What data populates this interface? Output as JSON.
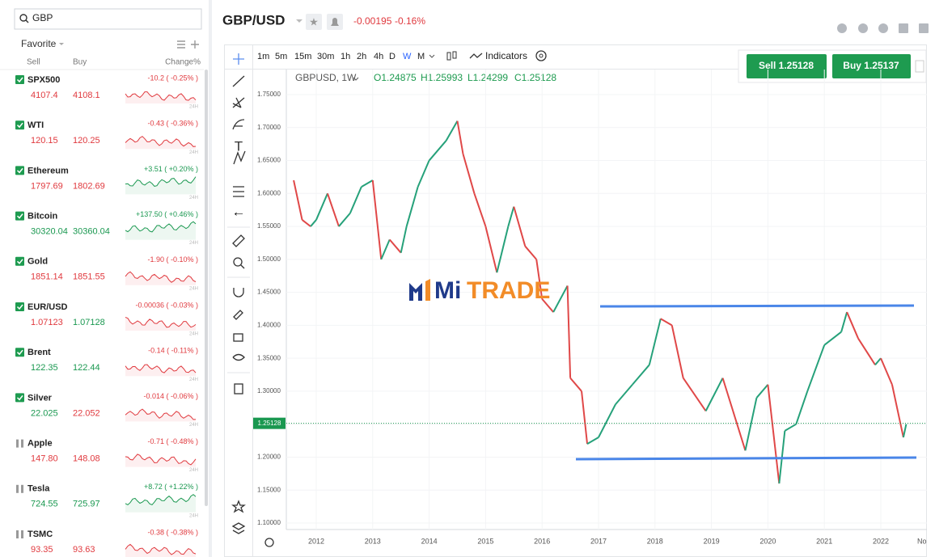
{
  "watchlist": {
    "search": "GBP",
    "tab": "Favorite",
    "columns": [
      "Sell",
      "Buy",
      "Change%"
    ],
    "sparkline_label": "24H",
    "items": [
      {
        "name": "SPX500",
        "sell": "4107.4",
        "buy": "4108.1",
        "change": "-10.2 ( -0.25% )",
        "trend": "down",
        "sell_trend": "down",
        "buy_trend": "down",
        "checked": true
      },
      {
        "name": "WTI",
        "sell": "120.15",
        "buy": "120.25",
        "change": "-0.43 ( -0.36% )",
        "trend": "down",
        "sell_trend": "down",
        "buy_trend": "down",
        "checked": true
      },
      {
        "name": "Ethereum",
        "sell": "1797.69",
        "buy": "1802.69",
        "change": "+3.51 ( +0.20% )",
        "trend": "up",
        "sell_trend": "down",
        "buy_trend": "down",
        "checked": true
      },
      {
        "name": "Bitcoin",
        "sell": "30320.04",
        "buy": "30360.04",
        "change": "+137.50 ( +0.46% )",
        "trend": "up",
        "sell_trend": "up",
        "buy_trend": "up",
        "checked": true
      },
      {
        "name": "Gold",
        "sell": "1851.14",
        "buy": "1851.55",
        "change": "-1.90 ( -0.10% )",
        "trend": "down",
        "sell_trend": "down",
        "buy_trend": "down",
        "checked": true
      },
      {
        "name": "EUR/USD",
        "sell": "1.07123",
        "buy": "1.07128",
        "change": "-0.00036 ( -0.03% )",
        "trend": "down",
        "sell_trend": "down",
        "buy_trend": "up",
        "checked": true
      },
      {
        "name": "Brent",
        "sell": "122.35",
        "buy": "122.44",
        "change": "-0.14 ( -0.11% )",
        "trend": "down",
        "sell_trend": "up",
        "buy_trend": "up",
        "checked": true
      },
      {
        "name": "Silver",
        "sell": "22.025",
        "buy": "22.052",
        "change": "-0.014 ( -0.06% )",
        "trend": "down",
        "sell_trend": "up",
        "buy_trend": "down",
        "checked": true
      },
      {
        "name": "Apple",
        "sell": "147.80",
        "buy": "148.08",
        "change": "-0.71 ( -0.48% )",
        "trend": "down",
        "sell_trend": "down",
        "buy_trend": "down",
        "checked": false
      },
      {
        "name": "Tesla",
        "sell": "724.55",
        "buy": "725.97",
        "change": "+8.72 ( +1.22% )",
        "trend": "up",
        "sell_trend": "up",
        "buy_trend": "up",
        "checked": false
      },
      {
        "name": "TSMC",
        "sell": "93.35",
        "buy": "93.63",
        "change": "-0.38 ( -0.38% )",
        "trend": "down",
        "sell_trend": "down",
        "buy_trend": "down",
        "checked": false
      }
    ]
  },
  "header": {
    "symbol": "GBP/USD",
    "change": "-0.00195",
    "change_pct": "-0.16%"
  },
  "toolbar": {
    "timeframes": [
      "1m",
      "5m",
      "15m",
      "30m",
      "1h",
      "2h",
      "4h",
      "D",
      "W",
      "M"
    ],
    "selected": 8,
    "indicators": "Indicators"
  },
  "trade": {
    "sell": "Sell 1.25128",
    "buy": "Buy 1.25137"
  },
  "legend": {
    "symbol": "GBPUSD, 1W",
    "open": "O1.24875",
    "high": "H1.25993",
    "low": "L1.24299",
    "close": "C1.25128"
  },
  "watermark": [
    "Mi",
    "TRADE"
  ],
  "chart": {
    "type": "line",
    "ylim": [
      1.1,
      1.75
    ],
    "yticks": [
      {
        "value": 1.75,
        "label": "1.75000"
      },
      {
        "value": 1.7,
        "label": "1.70000"
      },
      {
        "value": 1.65,
        "label": "1.65000"
      },
      {
        "value": 1.6,
        "label": "1.60000"
      },
      {
        "value": 1.55,
        "label": "1.55000"
      },
      {
        "value": 1.5,
        "label": "1.50000"
      },
      {
        "value": 1.45,
        "label": "1.45000"
      },
      {
        "value": 1.4,
        "label": "1.40000"
      },
      {
        "value": 1.35,
        "label": "1.35000"
      },
      {
        "value": 1.3,
        "label": "1.30000"
      },
      {
        "value": 1.25,
        "label": "1.25000"
      },
      {
        "value": 1.2,
        "label": "1.20000"
      },
      {
        "value": 1.15,
        "label": "1.15000"
      },
      {
        "value": 1.1,
        "label": "1.10000"
      }
    ],
    "xticks": [
      2012,
      2013,
      2014,
      2015,
      2016,
      2017,
      2018,
      2019,
      2020,
      2021,
      2022
    ],
    "xtick_cut": "No",
    "last": 1.25128,
    "x": [
      2011.6,
      2011.75,
      2011.9,
      2012.0,
      2012.2,
      2012.4,
      2012.6,
      2012.8,
      2013.0,
      2013.15,
      2013.3,
      2013.5,
      2013.6,
      2013.8,
      2014.0,
      2014.3,
      2014.5,
      2014.6,
      2014.8,
      2015.0,
      2015.2,
      2015.4,
      2015.5,
      2015.7,
      2015.9,
      2016.0,
      2016.2,
      2016.45,
      2016.5,
      2016.7,
      2016.8,
      2017.0,
      2017.3,
      2017.6,
      2017.9,
      2018.1,
      2018.3,
      2018.5,
      2018.9,
      2019.2,
      2019.6,
      2019.8,
      2020.0,
      2020.2,
      2020.3,
      2020.5,
      2020.7,
      2021.0,
      2021.3,
      2021.4,
      2021.6,
      2021.9,
      2022.0,
      2022.2,
      2022.4,
      2022.45
    ],
    "values": [
      1.62,
      1.56,
      1.55,
      1.56,
      1.6,
      1.55,
      1.57,
      1.61,
      1.62,
      1.5,
      1.53,
      1.51,
      1.55,
      1.61,
      1.65,
      1.68,
      1.71,
      1.66,
      1.6,
      1.55,
      1.48,
      1.55,
      1.58,
      1.52,
      1.5,
      1.44,
      1.42,
      1.46,
      1.32,
      1.3,
      1.22,
      1.23,
      1.28,
      1.31,
      1.34,
      1.41,
      1.4,
      1.32,
      1.27,
      1.32,
      1.21,
      1.29,
      1.31,
      1.16,
      1.24,
      1.25,
      1.3,
      1.37,
      1.39,
      1.42,
      1.38,
      1.34,
      1.35,
      1.31,
      1.23,
      1.25
    ]
  }
}
